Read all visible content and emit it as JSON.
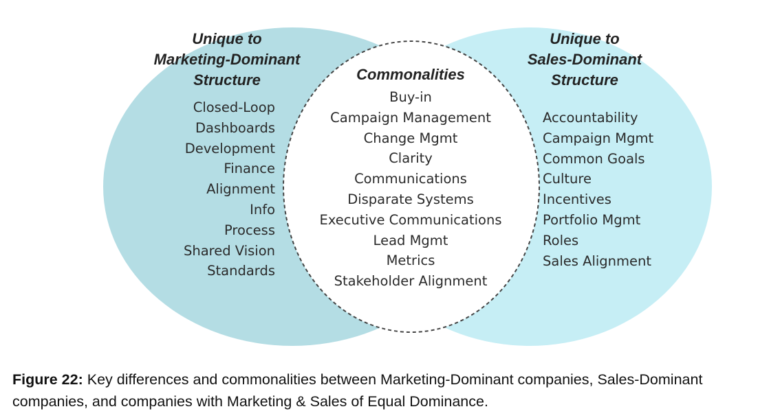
{
  "diagram": {
    "left": {
      "heading": [
        "Unique to",
        "Marketing-Dominant",
        "Structure"
      ],
      "items": [
        "Closed-Loop",
        "Dashboards",
        "Development",
        "Finance",
        "Alignment",
        "Info",
        "Process",
        "Shared Vision",
        "Standards"
      ],
      "fill": "#b4dde4"
    },
    "center": {
      "heading": "Commonalities",
      "items": [
        "Buy-in",
        "Campaign Management",
        "Change Mgmt",
        "Clarity",
        "Communications",
        "Disparate Systems",
        "Executive Communications",
        "Lead Mgmt",
        "Metrics",
        "Stakeholder Alignment"
      ],
      "fill": "#ffffff",
      "border": "dashed"
    },
    "right": {
      "heading": [
        "Unique to",
        "Sales-Dominant",
        "Structure"
      ],
      "items": [
        "Accountability",
        "Campaign Mgmt",
        "Common Goals",
        "Culture",
        "Incentives",
        "Portfolio Mgmt",
        "Roles",
        "Sales Alignment"
      ],
      "fill": "#c6eef5"
    }
  },
  "caption": {
    "label": "Figure 22:",
    "text": "Key differences and commonalities between Marketing-Dominant companies, Sales-Dominant companies, and companies with Marketing & Sales of Equal Dominance."
  }
}
